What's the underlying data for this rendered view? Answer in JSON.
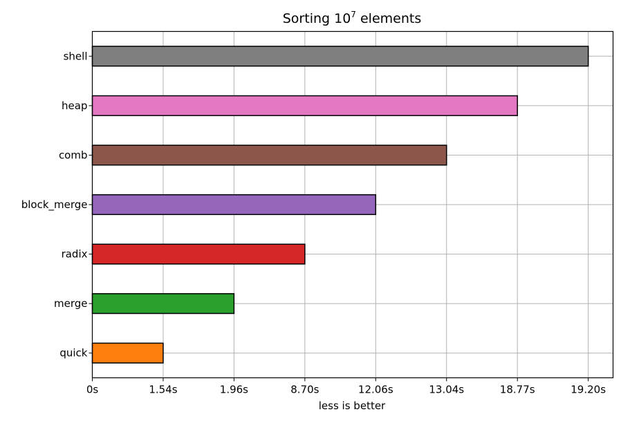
{
  "chart_data": {
    "type": "bar",
    "orientation": "horizontal",
    "title": "Sorting 10",
    "title_superscript": "7",
    "title_suffix": " elements",
    "xlabel": "less is better",
    "ylabel": "",
    "categories": [
      "quick",
      "merge",
      "radix",
      "block_merge",
      "comb",
      "heap",
      "shell"
    ],
    "values": [
      1,
      2,
      3,
      4,
      5,
      6,
      7
    ],
    "x_tick_labels": [
      "0s",
      "1.54s",
      "1.96s",
      "8.70s",
      "12.06s",
      "13.04s",
      "18.77s",
      "19.20s"
    ],
    "xlim": [
      0,
      7.35
    ],
    "grid": true,
    "colors": [
      "#ff7f0e",
      "#2ca02c",
      "#d62728",
      "#9467bd",
      "#8c564b",
      "#e377c2",
      "#7f7f7f"
    ],
    "edge_color": "#000000"
  }
}
